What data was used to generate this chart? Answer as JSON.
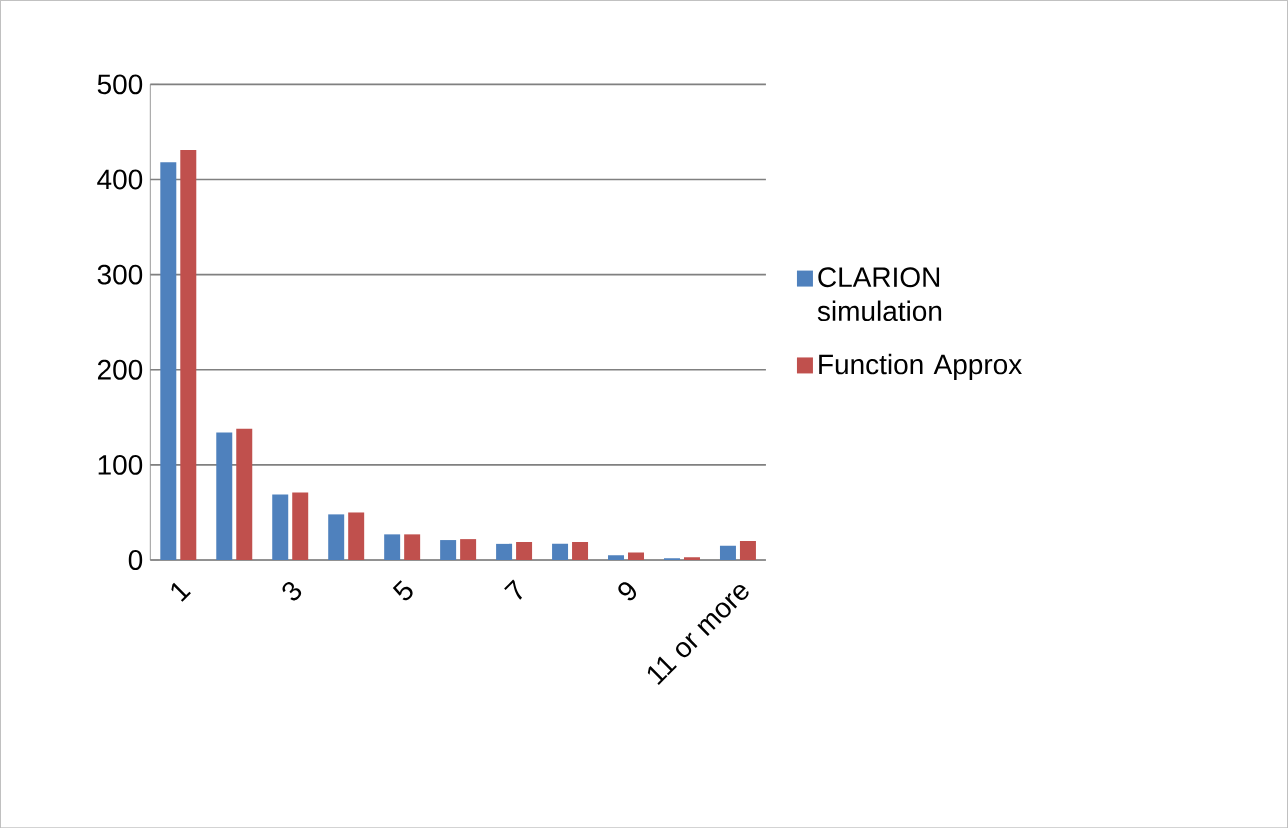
{
  "chart_data": {
    "type": "bar",
    "categories": [
      "1",
      null,
      "3",
      null,
      "5",
      null,
      "7",
      null,
      "9",
      null,
      "11 or more"
    ],
    "series": [
      {
        "name": "CLARION simulation",
        "color": "#4f81bd",
        "values": [
          418,
          134,
          69,
          48,
          27,
          21,
          17,
          17,
          5,
          2,
          15
        ]
      },
      {
        "name": "Function Approx",
        "color": "#c0504d",
        "values": [
          431,
          138,
          71,
          50,
          27,
          22,
          19,
          19,
          8,
          3,
          20
        ]
      }
    ],
    "ylim": [
      0,
      500
    ],
    "yticks": [
      0,
      100,
      200,
      300,
      400,
      500
    ],
    "grid": "y",
    "legend": "right"
  }
}
